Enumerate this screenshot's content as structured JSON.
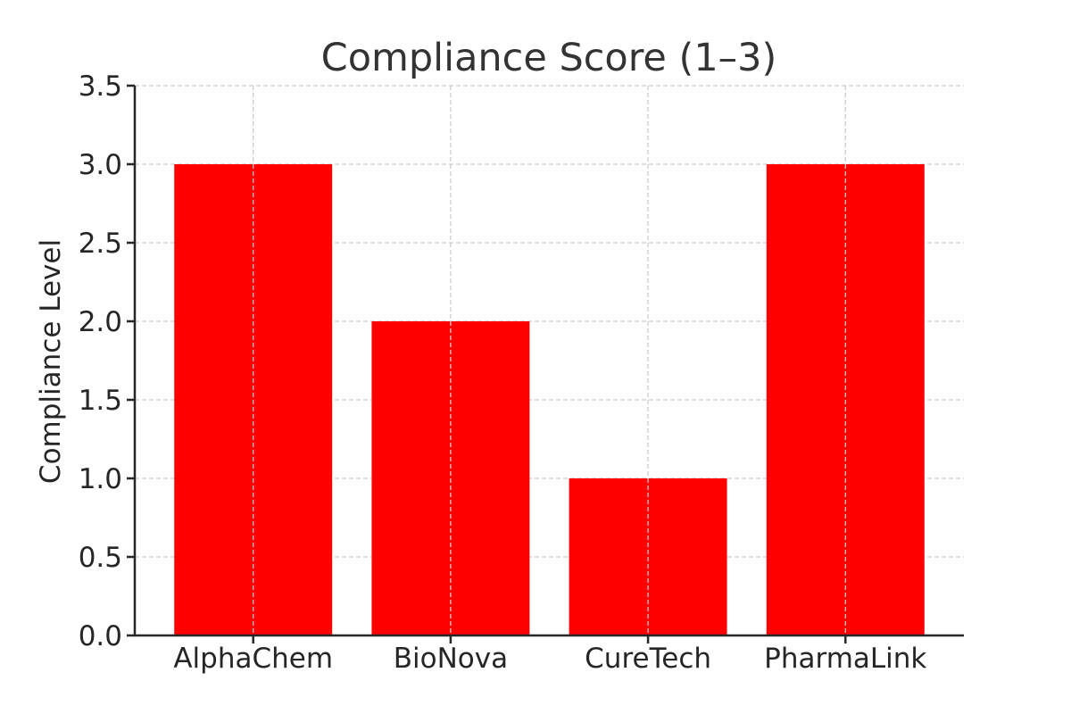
{
  "chart_data": {
    "type": "bar",
    "title": "Compliance Score (1–3)",
    "xlabel": "",
    "ylabel": "Compliance Level",
    "categories": [
      "AlphaChem",
      "BioNova",
      "CureTech",
      "PharmaLink"
    ],
    "values": [
      3,
      2,
      1,
      3
    ],
    "ylim": [
      0,
      3.5
    ],
    "yticks": [
      "0.0",
      "0.5",
      "1.0",
      "1.5",
      "2.0",
      "2.5",
      "3.0",
      "3.5"
    ],
    "bar_color": "#ff0000",
    "grid": true,
    "legend": "none"
  }
}
